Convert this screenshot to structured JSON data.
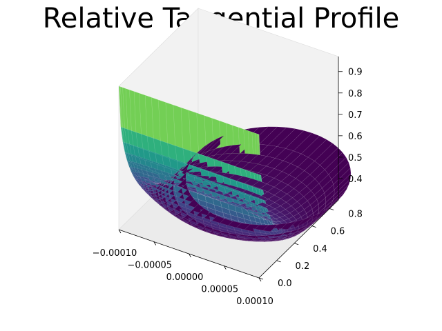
{
  "chart_data": {
    "type": "surface",
    "title": "Relative Tangential Profile",
    "xlabel": "",
    "ylabel": "",
    "zlabel": "",
    "x_ticks": [
      "−0.00010",
      "−0.00005",
      "0.00000",
      "0.00005",
      "0.00010"
    ],
    "y_ticks": [
      "0.0",
      "0.2",
      "0.4",
      "0.6",
      "0.8"
    ],
    "z_ticks": [
      "0.4",
      "0.5",
      "0.6",
      "0.7",
      "0.8",
      "0.9"
    ],
    "xlim": [
      -0.0001,
      0.0001
    ],
    "ylim": [
      0.0,
      0.9
    ],
    "zlim": [
      0.3,
      0.97
    ],
    "colormap": "viridis",
    "surface": {
      "radius": 0.0001,
      "z_min": 0.3,
      "z_max": 0.97,
      "y_at_base": 0.9,
      "y_at_top": 0.0
    },
    "colors": {
      "pane": "#f2f2f2",
      "pane_dark": "#ebebeb",
      "edge": "#dcdcdc"
    }
  }
}
